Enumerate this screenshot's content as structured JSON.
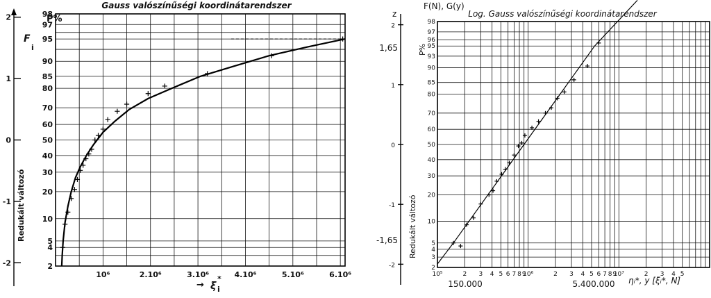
{
  "chart_data": [
    {
      "type": "scatter",
      "title": "Gauss valószínűségi koordinátarendszer",
      "y_prob_label": "P%",
      "y_prob_symbol": "F",
      "y_prob_subscript": "i",
      "y_reduced_label": "Redukált változó",
      "x_label": "ξ",
      "x_label_sup": "*",
      "x_label_sub": "i",
      "x_label_arrow": "→",
      "x_tick_labels": [
        "10⁶",
        "2.10⁶",
        "3.10⁶",
        "4.10⁶",
        "5.10⁶",
        "6.10⁶"
      ],
      "x_ticks": [
        1000000,
        2000000,
        3000000,
        4000000,
        5000000,
        6000000
      ],
      "xlim": [
        0,
        6100000
      ],
      "y_prob_ticks": [
        2,
        3,
        4,
        5,
        10,
        20,
        30,
        40,
        50,
        60,
        70,
        80,
        85,
        90,
        93,
        95,
        96,
        97,
        98
      ],
      "y_prob_tick_labels": [
        "2",
        "",
        "4",
        "5",
        "10",
        "20",
        "30",
        "40",
        "50",
        "60",
        "70",
        "80",
        "85",
        "90",
        "",
        "95",
        "",
        "97",
        "98"
      ],
      "y_reduced_ticks": [
        -2,
        -1,
        0,
        1,
        2
      ],
      "y_reduced_tick_labels": [
        "-2",
        "-1",
        "0",
        "1",
        "2"
      ],
      "ylim_percent": [
        2,
        98
      ],
      "grid": true,
      "series": [
        {
          "kind": "points",
          "marker": "+",
          "x": [
            150000,
            200000,
            260000,
            330000,
            400000,
            460000,
            520000,
            580000,
            640000,
            700000,
            760000,
            830000,
            900000,
            1000000,
            1100000,
            1300000,
            1500000,
            1950000,
            2300000,
            3200000,
            4550000,
            6050000
          ],
          "y_percent": [
            4,
            8.5,
            12,
            17,
            21,
            26,
            31,
            34,
            38,
            41,
            44,
            50,
            53,
            57,
            63,
            68,
            72,
            77.5,
            81,
            86,
            91.5,
            95
          ]
        },
        {
          "kind": "curve",
          "x": [
            130000,
            140000,
            160000,
            200000,
            260000,
            330000,
            420000,
            520000,
            650000,
            800000,
            1000000,
            1250000,
            1550000,
            1950000,
            2450000,
            3050000,
            3750000,
            4500000,
            5300000,
            6100000
          ],
          "y_percent": [
            2,
            3,
            5,
            9,
            14,
            20,
            27,
            33,
            40,
            47,
            55,
            62,
            69,
            75,
            80,
            85,
            88.5,
            91.5,
            93.5,
            95
          ]
        }
      ]
    },
    {
      "type": "scatter",
      "title": "Log. Gauss valószínűségi koordinátarendszer",
      "y_prob_label": "P%",
      "y_top_label": "F(N), G(y)",
      "y_reduced_symbol": "z",
      "y_reduced_label": "Redukált változó",
      "x_label": "ηᵢ*, y [ξᵢ*, N]",
      "x_scale": "log",
      "x_decade_labels": [
        "10⁵",
        "10⁶",
        "10⁷"
      ],
      "x_minor_labels": [
        "2",
        "3",
        "4",
        "5",
        "6",
        "7",
        "8",
        "9"
      ],
      "xlim": [
        100000,
        100000000
      ],
      "y_prob_ticks": [
        2,
        3,
        4,
        5,
        10,
        20,
        30,
        40,
        50,
        60,
        70,
        80,
        85,
        90,
        93,
        95,
        96,
        97,
        98
      ],
      "y_prob_tick_labels": [
        "2",
        "3",
        "4",
        "5",
        "10",
        "20",
        "30",
        "40",
        "50",
        "60",
        "70",
        "80",
        "85",
        "90",
        "93",
        "95",
        "96",
        "97",
        "98"
      ],
      "y_reduced_ticks": [
        -2,
        -1,
        0,
        1,
        2
      ],
      "y_reduced_tick_labels": [
        "-2",
        "-1",
        "0",
        "1",
        "2"
      ],
      "ylim_percent": [
        2,
        98
      ],
      "grid": true,
      "annotations": {
        "z_high": "1,65",
        "z_low": "-1,65",
        "x_low_value": "150.000",
        "x_high_value": "5.400.000"
      },
      "series": [
        {
          "kind": "points",
          "marker": "+",
          "x": [
            150000,
            180000,
            210000,
            250000,
            300000,
            370000,
            410000,
            450000,
            510000,
            560000,
            620000,
            700000,
            780000,
            850000,
            920000,
            1100000,
            1300000,
            1550000,
            1800000,
            2100000,
            2500000,
            3200000,
            4500000,
            6000000
          ],
          "y_percent": [
            5,
            4.5,
            9,
            11,
            16,
            20,
            22,
            27,
            31,
            34,
            38,
            43,
            49,
            51,
            56,
            61,
            65,
            70,
            73,
            78,
            81,
            86,
            90.5,
            95.5
          ]
        },
        {
          "kind": "line",
          "x": [
            100000,
            150000,
            5400000,
            16000000
          ],
          "y_percent": [
            2.3,
            5,
            95,
            99.2
          ]
        }
      ]
    }
  ]
}
